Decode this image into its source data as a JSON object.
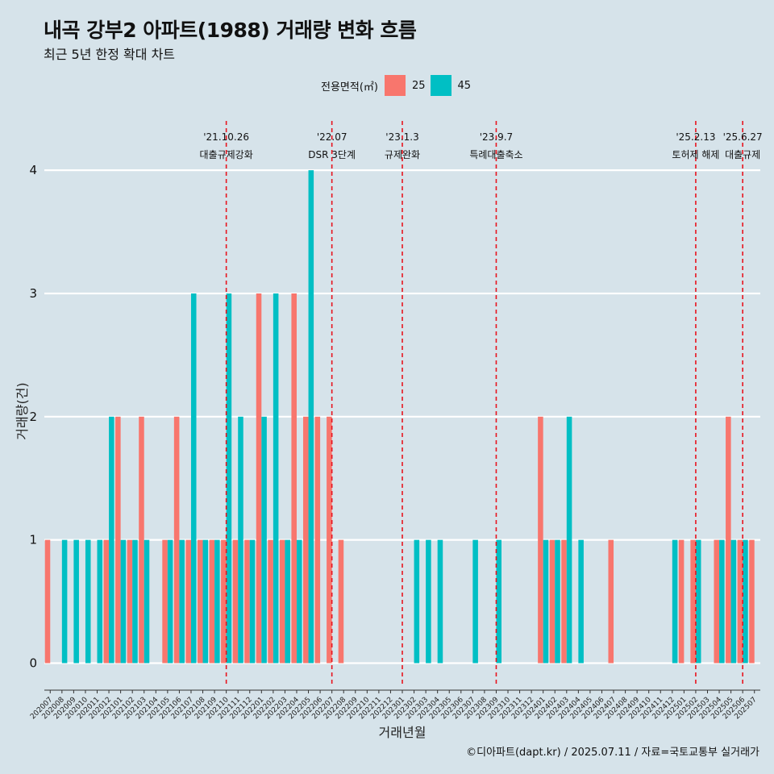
{
  "title": "내곡 강부2 아파트(1988) 거래량 변화 흐름",
  "subtitle": "최근 5년 한정 확대 차트",
  "caption": "©디아파트(dapt.kr) / 2025.07.11 / 자료=국토교통부 실거래가",
  "legend": {
    "title": "전용면적(㎡)",
    "items": [
      {
        "label": "25",
        "color": "#f8766d"
      },
      {
        "label": "45",
        "color": "#00bfc4"
      }
    ]
  },
  "chart_data": {
    "type": "bar",
    "xlabel": "거래년월",
    "ylabel": "거래량(건)",
    "ylim": [
      -0.18,
      4.4
    ],
    "yticks": [
      0,
      1,
      2,
      3,
      4
    ],
    "grid": true,
    "legend_position": "top",
    "categories": [
      "202007",
      "202008",
      "202009",
      "202010",
      "202011",
      "202012",
      "202101",
      "202102",
      "202103",
      "202104",
      "202105",
      "202106",
      "202107",
      "202108",
      "202109",
      "202110",
      "202111",
      "202112",
      "202201",
      "202202",
      "202203",
      "202204",
      "202205",
      "202206",
      "202207",
      "202208",
      "202209",
      "202210",
      "202211",
      "202212",
      "202301",
      "202302",
      "202303",
      "202304",
      "202305",
      "202306",
      "202307",
      "202308",
      "202309",
      "202310",
      "202311",
      "202312",
      "202401",
      "202402",
      "202403",
      "202404",
      "202405",
      "202406",
      "202407",
      "202408",
      "202409",
      "202410",
      "202411",
      "202412",
      "202501",
      "202502",
      "202503",
      "202504",
      "202505",
      "202506",
      "202507"
    ],
    "series": [
      {
        "name": "25",
        "color": "#f8766d",
        "values": [
          1,
          0,
          0,
          0,
          0,
          1,
          2,
          1,
          2,
          0,
          1,
          2,
          1,
          1,
          1,
          1,
          1,
          1,
          3,
          1,
          1,
          3,
          2,
          2,
          2,
          1,
          0,
          0,
          0,
          0,
          0,
          0,
          0,
          0,
          0,
          0,
          0,
          0,
          0,
          0,
          0,
          0,
          2,
          1,
          1,
          0,
          0,
          0,
          1,
          0,
          0,
          0,
          0,
          0,
          1,
          1,
          0,
          1,
          2,
          1,
          1
        ]
      },
      {
        "name": "45",
        "color": "#00bfc4",
        "values": [
          0,
          1,
          1,
          1,
          1,
          2,
          1,
          1,
          1,
          0,
          1,
          1,
          3,
          1,
          1,
          3,
          2,
          1,
          2,
          3,
          1,
          1,
          4,
          0,
          0,
          0,
          0,
          0,
          0,
          0,
          0,
          1,
          1,
          1,
          0,
          0,
          1,
          0,
          1,
          0,
          0,
          0,
          1,
          1,
          2,
          1,
          0,
          0,
          0,
          0,
          0,
          0,
          0,
          1,
          0,
          1,
          0,
          1,
          1,
          1,
          0
        ]
      }
    ],
    "events": [
      {
        "date": "'21.10.26",
        "label": "대출규제강화",
        "index": 15
      },
      {
        "date": "'22.07",
        "label": "DSR 3단계",
        "index": 24
      },
      {
        "date": "'23.1.3",
        "label": "규제완화",
        "index": 30
      },
      {
        "date": "'23.9.7",
        "label": "특례대출축소",
        "index": 38
      },
      {
        "date": "'25.2.13",
        "label": "토허제 해제",
        "index": 55
      },
      {
        "date": "'25.6.27",
        "label": "대출규제",
        "index": 59
      }
    ]
  }
}
